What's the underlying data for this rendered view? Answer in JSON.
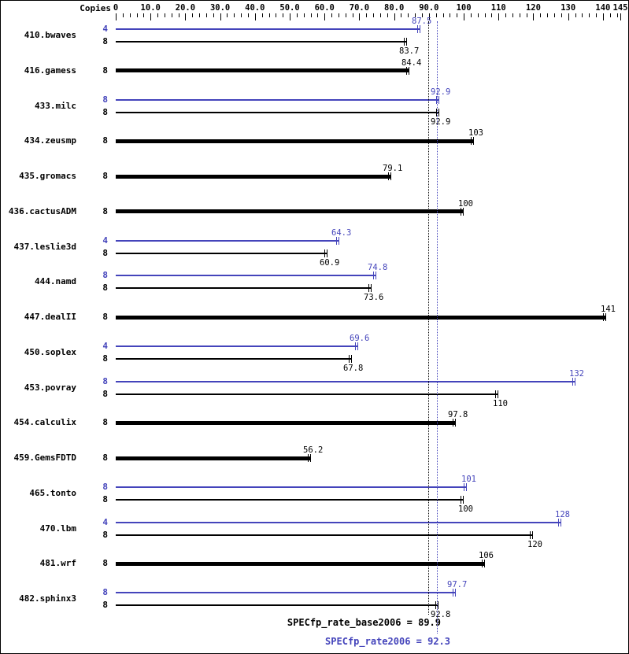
{
  "copies_header": "Copies",
  "colors": {
    "base": "#000000",
    "peak": "#4444bb"
  },
  "footer": {
    "base_label": "SPECfp_rate_base2006 = 89.9",
    "base_value": 89.9,
    "peak_label": "SPECfp_rate2006 = 92.3",
    "peak_value": 92.3
  },
  "chart_data": {
    "type": "bar",
    "orientation": "horizontal",
    "legend_position": "none",
    "grid": false,
    "axis": {
      "min": 0,
      "max": 145,
      "minor_step": 2,
      "ticks": [
        {
          "label": "0",
          "value": 0
        },
        {
          "label": "10.0",
          "value": 10
        },
        {
          "label": "20.0",
          "value": 20
        },
        {
          "label": "30.0",
          "value": 30
        },
        {
          "label": "40.0",
          "value": 40
        },
        {
          "label": "50.0",
          "value": 50
        },
        {
          "label": "60.0",
          "value": 60
        },
        {
          "label": "70.0",
          "value": 70
        },
        {
          "label": "80.0",
          "value": 80
        },
        {
          "label": "90.0",
          "value": 90
        },
        {
          "label": "100",
          "value": 100
        },
        {
          "label": "110",
          "value": 110
        },
        {
          "label": "120",
          "value": 120
        },
        {
          "label": "130",
          "value": 130
        },
        {
          "label": "140",
          "value": 140
        },
        {
          "label": "145",
          "value": 145
        }
      ]
    },
    "benchmarks": [
      {
        "name": "410.bwaves",
        "bars": [
          {
            "series": "peak",
            "copies": "4",
            "value": 87.5,
            "label": "87.5"
          },
          {
            "series": "base",
            "copies": "8",
            "value": 83.7,
            "label": "83.7"
          }
        ]
      },
      {
        "name": "416.gamess",
        "bars": [
          {
            "series": "base",
            "copies": "8",
            "value": 84.4,
            "label": "84.4",
            "thick": true
          }
        ]
      },
      {
        "name": "433.milc",
        "bars": [
          {
            "series": "peak",
            "copies": "8",
            "value": 92.9,
            "label": "92.9"
          },
          {
            "series": "base",
            "copies": "8",
            "value": 92.9,
            "label": "92.9"
          }
        ]
      },
      {
        "name": "434.zeusmp",
        "bars": [
          {
            "series": "base",
            "copies": "8",
            "value": 103,
            "label": "103",
            "thick": true
          }
        ]
      },
      {
        "name": "435.gromacs",
        "bars": [
          {
            "series": "base",
            "copies": "8",
            "value": 79.1,
            "label": "79.1",
            "thick": true
          }
        ]
      },
      {
        "name": "436.cactusADM",
        "bars": [
          {
            "series": "base",
            "copies": "8",
            "value": 100,
            "label": "100",
            "thick": true
          }
        ]
      },
      {
        "name": "437.leslie3d",
        "bars": [
          {
            "series": "peak",
            "copies": "4",
            "value": 64.3,
            "label": "64.3"
          },
          {
            "series": "base",
            "copies": "8",
            "value": 60.9,
            "label": "60.9"
          }
        ]
      },
      {
        "name": "444.namd",
        "bars": [
          {
            "series": "peak",
            "copies": "8",
            "value": 74.8,
            "label": "74.8"
          },
          {
            "series": "base",
            "copies": "8",
            "value": 73.6,
            "label": "73.6"
          }
        ]
      },
      {
        "name": "447.dealII",
        "bars": [
          {
            "series": "base",
            "copies": "8",
            "value": 141,
            "label": "141",
            "thick": true
          }
        ]
      },
      {
        "name": "450.soplex",
        "bars": [
          {
            "series": "peak",
            "copies": "4",
            "value": 69.6,
            "label": "69.6"
          },
          {
            "series": "base",
            "copies": "8",
            "value": 67.8,
            "label": "67.8"
          }
        ]
      },
      {
        "name": "453.povray",
        "bars": [
          {
            "series": "peak",
            "copies": "8",
            "value": 132,
            "label": "132"
          },
          {
            "series": "base",
            "copies": "8",
            "value": 110,
            "label": "110"
          }
        ]
      },
      {
        "name": "454.calculix",
        "bars": [
          {
            "series": "base",
            "copies": "8",
            "value": 97.8,
            "label": "97.8",
            "thick": true
          }
        ]
      },
      {
        "name": "459.GemsFDTD",
        "bars": [
          {
            "series": "base",
            "copies": "8",
            "value": 56.2,
            "label": "56.2",
            "thick": true
          }
        ]
      },
      {
        "name": "465.tonto",
        "bars": [
          {
            "series": "peak",
            "copies": "8",
            "value": 101,
            "label": "101"
          },
          {
            "series": "base",
            "copies": "8",
            "value": 100,
            "label": "100"
          }
        ]
      },
      {
        "name": "470.lbm",
        "bars": [
          {
            "series": "peak",
            "copies": "4",
            "value": 128,
            "label": "128"
          },
          {
            "series": "base",
            "copies": "8",
            "value": 120,
            "label": "120"
          }
        ]
      },
      {
        "name": "481.wrf",
        "bars": [
          {
            "series": "base",
            "copies": "8",
            "value": 106,
            "label": "106",
            "thick": true
          }
        ]
      },
      {
        "name": "482.sphinx3",
        "bars": [
          {
            "series": "peak",
            "copies": "8",
            "value": 97.7,
            "label": "97.7"
          },
          {
            "series": "base",
            "copies": "8",
            "value": 92.8,
            "label": "92.8"
          }
        ]
      }
    ]
  }
}
